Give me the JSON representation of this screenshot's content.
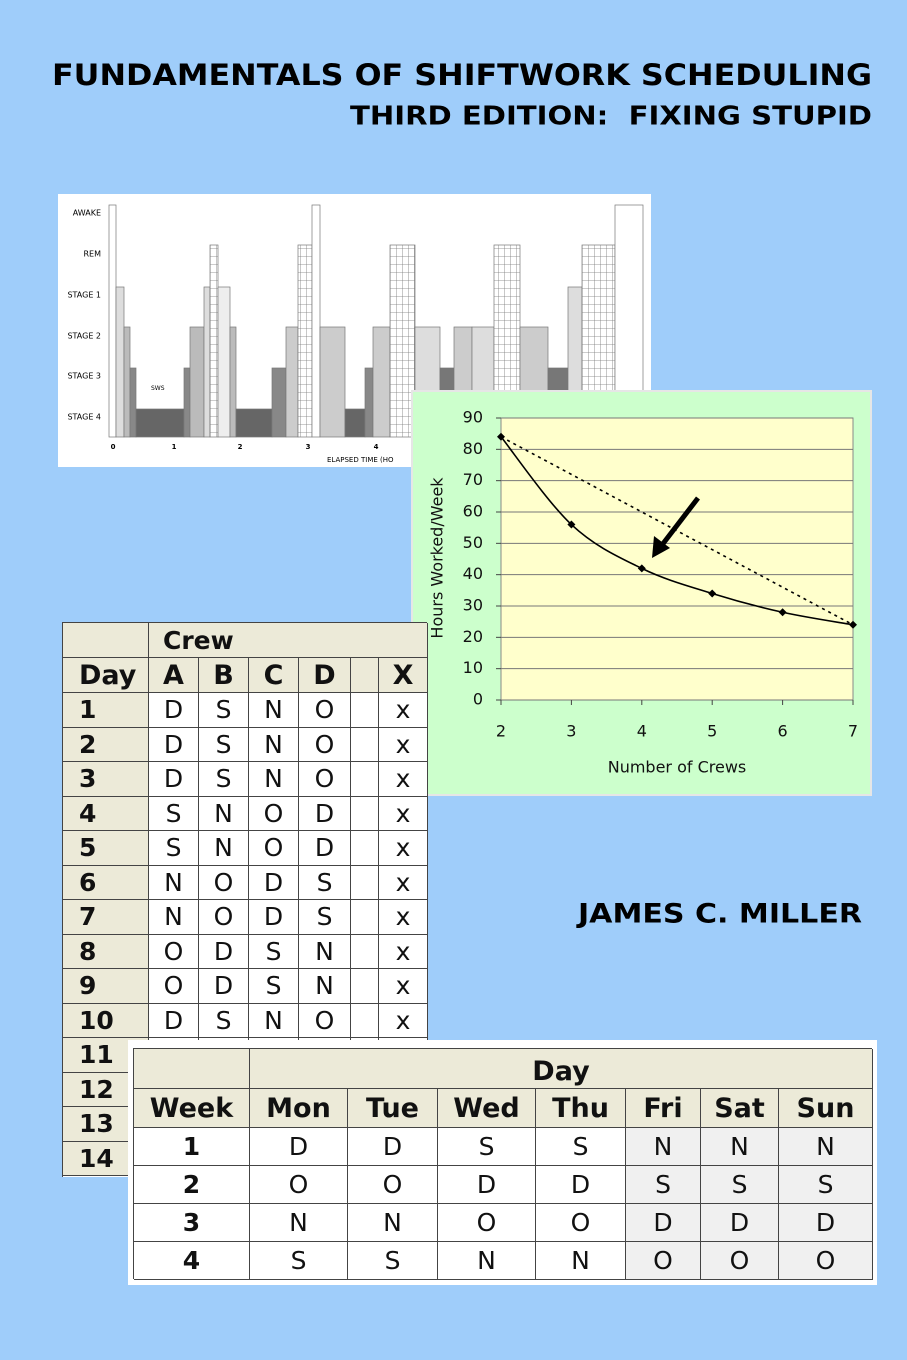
{
  "header": {
    "title": "FUNDAMENTALS OF SHIFTWORK SCHEDULING",
    "subtitle": "THIRD EDITION:  FIXING STUPID"
  },
  "hypnogram": {
    "stages": [
      "AWAKE",
      "REM",
      "STAGE 1",
      "STAGE 2",
      "STAGE 3",
      "STAGE 4"
    ],
    "annotation": "SWS",
    "xticks": [
      0,
      1,
      2,
      3,
      4
    ],
    "xlabel": "ELAPSED TIME (HO"
  },
  "chart_data": {
    "type": "line",
    "ylabel": "Hours Worked/Week",
    "xlabel": "Number of Crews",
    "x": [
      2,
      3,
      4,
      5,
      6,
      7
    ],
    "series": [
      {
        "color": "#000000",
        "values": [
          84,
          56,
          42,
          34,
          28,
          24
        ],
        "smooth": true,
        "markers": true
      },
      {
        "color": "#000000",
        "dashed": true,
        "x": [
          2,
          7
        ],
        "values": [
          84,
          24
        ]
      }
    ],
    "xlim": [
      2,
      7
    ],
    "xticks": [
      2,
      3,
      4,
      5,
      6,
      7
    ],
    "ylim": [
      0,
      90
    ],
    "yticks": [
      0,
      10,
      20,
      30,
      40,
      50,
      60,
      70,
      80,
      90
    ],
    "grid": true
  },
  "crew_table": {
    "group_header": "Crew",
    "columns": [
      "Day",
      "A",
      "B",
      "C",
      "D",
      "X"
    ],
    "rows": [
      [
        "1",
        "D",
        "S",
        "N",
        "O",
        "x"
      ],
      [
        "2",
        "D",
        "S",
        "N",
        "O",
        "x"
      ],
      [
        "3",
        "D",
        "S",
        "N",
        "O",
        "x"
      ],
      [
        "4",
        "S",
        "N",
        "O",
        "D",
        "x"
      ],
      [
        "5",
        "S",
        "N",
        "O",
        "D",
        "x"
      ],
      [
        "6",
        "N",
        "O",
        "D",
        "S",
        "x"
      ],
      [
        "7",
        "N",
        "O",
        "D",
        "S",
        "x"
      ],
      [
        "8",
        "O",
        "D",
        "S",
        "N",
        "x"
      ],
      [
        "9",
        "O",
        "D",
        "S",
        "N",
        "x"
      ],
      [
        "10",
        "D",
        "S",
        "N",
        "O",
        "x"
      ],
      [
        "11"
      ],
      [
        "12"
      ],
      [
        "13"
      ],
      [
        "14"
      ]
    ]
  },
  "week_table": {
    "group_header": "Day",
    "columns": [
      "Week",
      "Mon",
      "Tue",
      "Wed",
      "Thu",
      "Fri",
      "Sat",
      "Sun"
    ],
    "rows": [
      [
        "1",
        "D",
        "D",
        "S",
        "S",
        "N",
        "N",
        "N"
      ],
      [
        "2",
        "O",
        "O",
        "D",
        "D",
        "S",
        "S",
        "S"
      ],
      [
        "3",
        "N",
        "N",
        "O",
        "O",
        "D",
        "D",
        "D"
      ],
      [
        "4",
        "S",
        "S",
        "N",
        "N",
        "O",
        "O",
        "O"
      ]
    ]
  },
  "author": "JAMES C. MILLER"
}
